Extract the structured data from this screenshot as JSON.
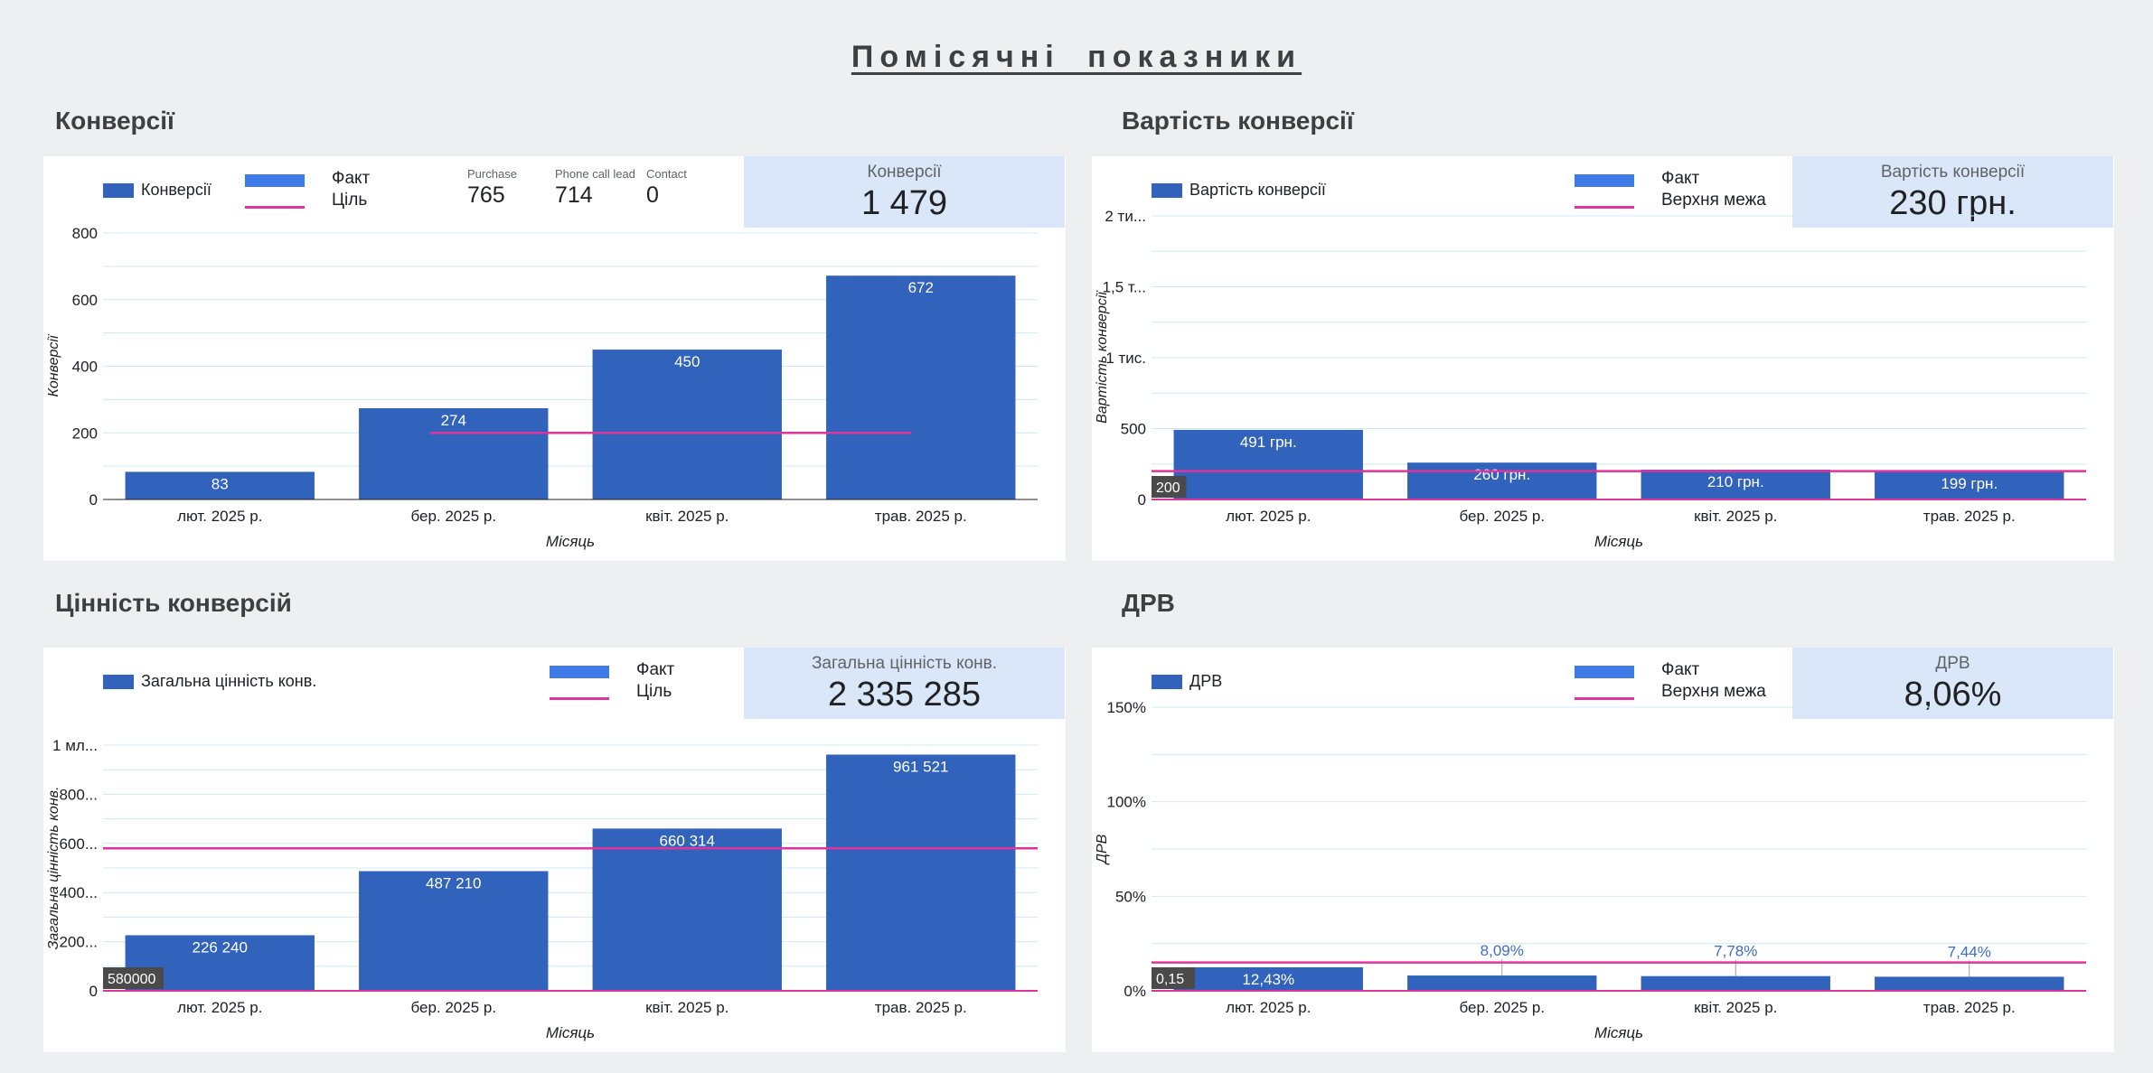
{
  "page_title": "Помісячні показники",
  "colors": {
    "bar": "#3162bc",
    "legend_bar": "#3f7ae8",
    "line": "#e0339b",
    "grid": "#cfe9f3",
    "scorecard_bg": "#d9e7f8"
  },
  "sections": [
    {
      "title": "Конверсії",
      "legend_series": "Конверсії",
      "combo_legend": [
        "Факт",
        "Ціль"
      ],
      "mini_metrics": [
        {
          "label": "Purchase",
          "value": "765"
        },
        {
          "label": "Phone call lead",
          "value": "714"
        },
        {
          "label": "Contact",
          "value": "0"
        }
      ],
      "scorecard": {
        "label": "Конверсії",
        "value": "1 479"
      },
      "chart_data": {
        "type": "bar",
        "categories": [
          "лют. 2025 р.",
          "бер. 2025 р.",
          "квіт. 2025 р.",
          "трав. 2025 р."
        ],
        "values": [
          83,
          274,
          450,
          672
        ],
        "value_labels": [
          "83",
          "274",
          "450",
          "672"
        ],
        "xlabel": "Місяць",
        "ylabel": "Конверсії",
        "ylim": [
          0,
          800
        ],
        "yticks": [
          0,
          200,
          400,
          600,
          800
        ],
        "ytick_labels": [
          "0",
          "200",
          "400",
          "600",
          "800"
        ],
        "reference_line": {
          "value": 200,
          "label": "",
          "span": "partial"
        }
      }
    },
    {
      "title": "Вартість конверсії",
      "legend_series": "Вартість конверсії",
      "combo_legend": [
        "Факт",
        "Верхня межа"
      ],
      "mini_metrics": [],
      "scorecard": {
        "label": "Вартість конверсії",
        "value": "230 грн."
      },
      "chart_data": {
        "type": "bar",
        "categories": [
          "лют. 2025 р.",
          "бер. 2025 р.",
          "квіт. 2025 р.",
          "трав. 2025 р."
        ],
        "values": [
          491,
          260,
          210,
          199
        ],
        "value_labels": [
          "491 грн.",
          "260 грн.",
          "210 грн.",
          "199 грн."
        ],
        "xlabel": "Місяць",
        "ylabel": "Вартість конверсії",
        "ylim": [
          0,
          2000
        ],
        "yticks": [
          0,
          500,
          1000,
          1500,
          2000
        ],
        "ytick_labels": [
          "0",
          "500",
          "1 тис.",
          "1,5 т...",
          "2 ти..."
        ],
        "reference_line": {
          "value": 200,
          "label": "200",
          "span": "full"
        }
      }
    },
    {
      "title": "Цінність конверсій",
      "legend_series": "Загальна цінність конв.",
      "combo_legend": [
        "Факт",
        "Ціль"
      ],
      "mini_metrics": [],
      "scorecard": {
        "label": "Загальна цінність конв.",
        "value": "2 335 285"
      },
      "chart_data": {
        "type": "bar",
        "categories": [
          "лют. 2025 р.",
          "бер. 2025 р.",
          "квіт. 2025 р.",
          "трав. 2025 р."
        ],
        "values": [
          226240,
          487210,
          660314,
          961521
        ],
        "value_labels": [
          "226 240",
          "487 210",
          "660 314",
          "961 521"
        ],
        "xlabel": "Місяць",
        "ylabel": "Загальна цінність конв.",
        "ylim": [
          0,
          1000000
        ],
        "yticks": [
          0,
          200000,
          400000,
          600000,
          800000,
          1000000
        ],
        "ytick_labels": [
          "0",
          "200...",
          "400...",
          "600...",
          "800...",
          "1 мл..."
        ],
        "reference_line": {
          "value": 580000,
          "label": "580000",
          "span": "full"
        }
      }
    },
    {
      "title": "ДРВ",
      "legend_series": "ДРВ",
      "combo_legend": [
        "Факт",
        "Верхня межа"
      ],
      "mini_metrics": [],
      "scorecard": {
        "label": "ДРВ",
        "value": "8,06%"
      },
      "chart_data": {
        "type": "bar",
        "categories": [
          "лют. 2025 р.",
          "бер. 2025 р.",
          "квіт. 2025 р.",
          "трав. 2025 р."
        ],
        "values": [
          12.43,
          8.09,
          7.78,
          7.44
        ],
        "value_labels": [
          "12,43%",
          "8,09%",
          "7,78%",
          "7,44%"
        ],
        "xlabel": "Місяць",
        "ylabel": "ДРВ",
        "ylim": [
          0,
          150
        ],
        "yticks": [
          0,
          50,
          100,
          150
        ],
        "ytick_labels": [
          "0%",
          "50%",
          "100%",
          "150%"
        ],
        "reference_line": {
          "value": 15,
          "label": "0,15",
          "span": "full"
        }
      }
    }
  ]
}
